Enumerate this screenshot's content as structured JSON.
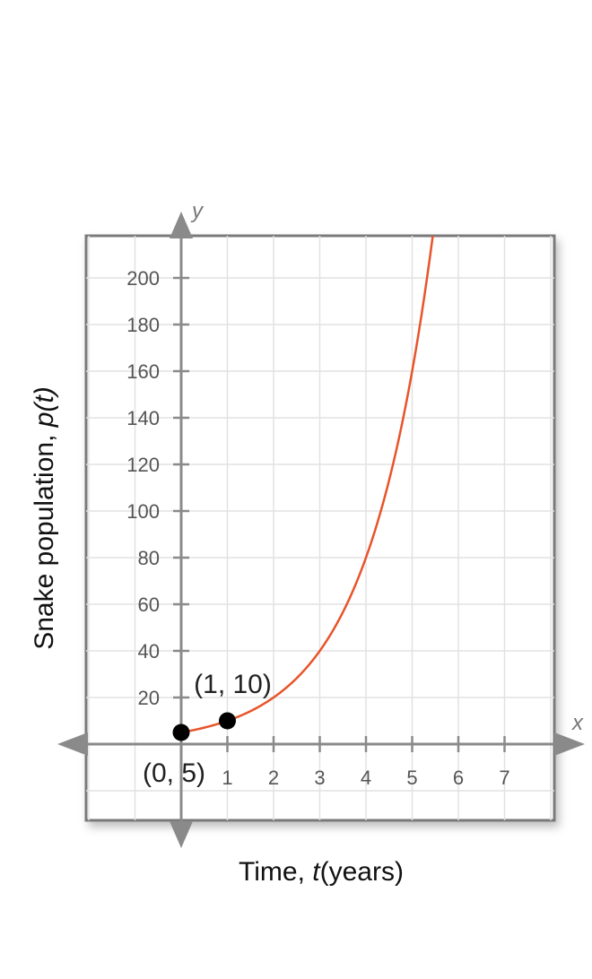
{
  "chart_data": {
    "type": "line",
    "xlabel_prefix": "Time, ",
    "xlabel_var": "t",
    "xlabel_suffix": "(years)",
    "ylabel_prefix": "Snake population, ",
    "ylabel_var": "p(t)",
    "x_axis_letter": "x",
    "y_axis_letter": "y",
    "xlim": [
      -2,
      8
    ],
    "ylim": [
      -32,
      220
    ],
    "x_ticks": [
      "1",
      "2",
      "3",
      "4",
      "5",
      "6",
      "7"
    ],
    "y_ticks": [
      "20",
      "40",
      "60",
      "80",
      "100",
      "120",
      "140",
      "160",
      "180",
      "200"
    ],
    "grid": true,
    "series": [
      {
        "function": "p(t) = 5·2^t",
        "initial": 5,
        "base": 2,
        "color": "#e8542a"
      }
    ],
    "points": [
      {
        "x": 0,
        "y": 5,
        "label": "(0, 5)"
      },
      {
        "x": 1,
        "y": 10,
        "label": "(1, 10)"
      }
    ]
  }
}
